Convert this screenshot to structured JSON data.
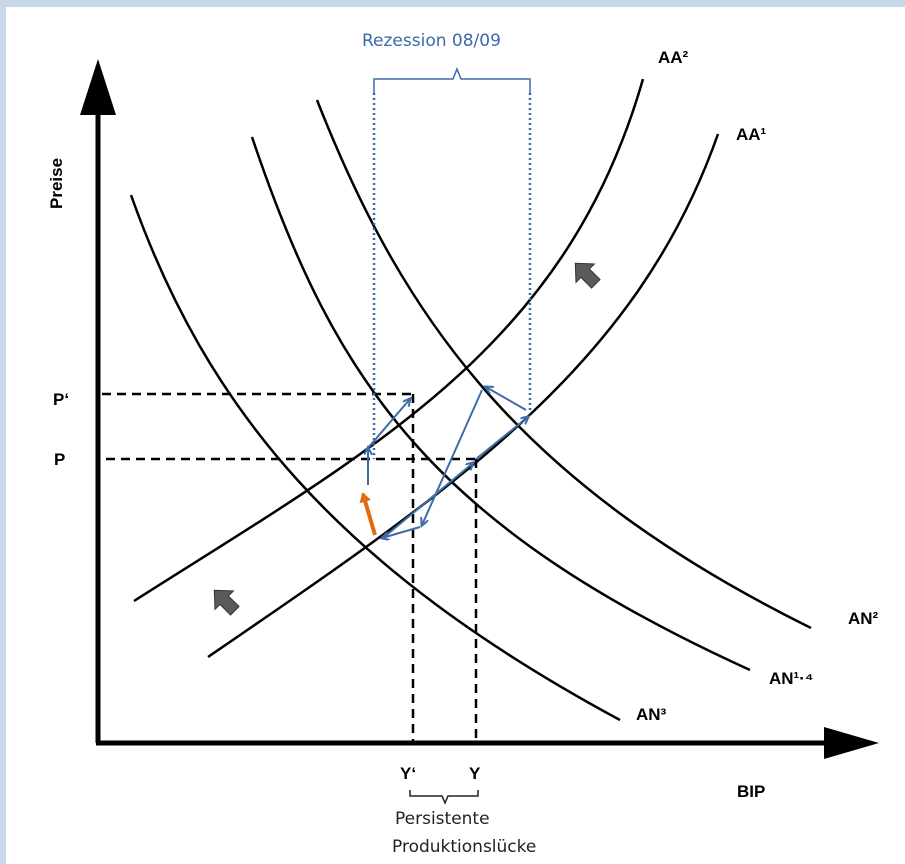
{
  "axes": {
    "y_label": "Preise",
    "x_label": "BIP",
    "y_ticks": [
      "P‘",
      "P"
    ],
    "x_ticks": [
      "Y‘",
      "Y"
    ]
  },
  "curves": {
    "aa2": "AA²",
    "aa1": "AA¹",
    "an2": "AN²",
    "an14": "AN¹·⁴",
    "an3": "AN³"
  },
  "annotations": {
    "recession": "Rezession 08/09",
    "gap_line1": "Persistente",
    "gap_line2": "Produktionslücke"
  },
  "colors": {
    "axis": "#000000",
    "curve": "#000000",
    "path_arrows": "#3f6ba6",
    "dotted_lines": "#3a6aa8",
    "shift_arrow": "#e06a10",
    "big_arrows": "#5a5a5a",
    "background": "#c9d7ea"
  }
}
